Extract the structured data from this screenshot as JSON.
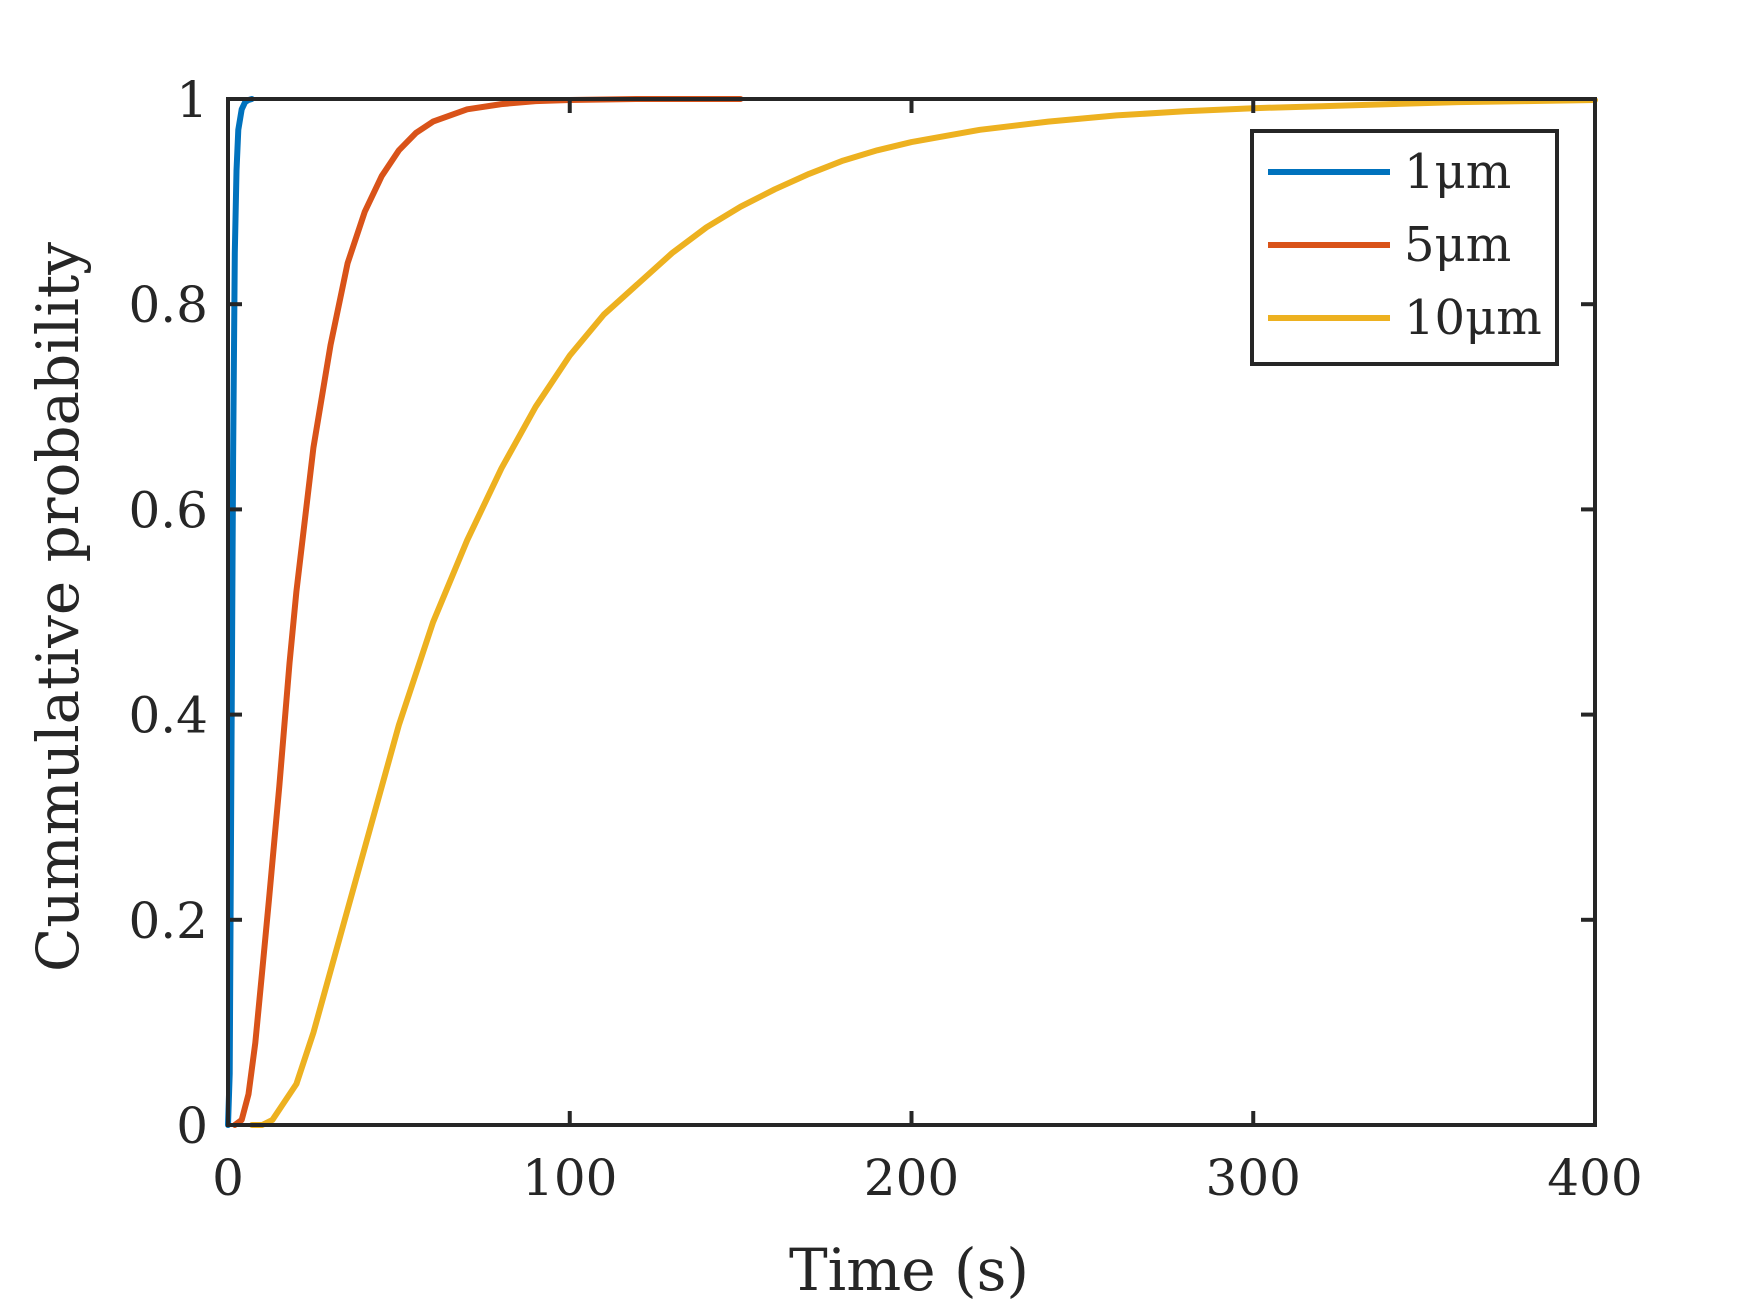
{
  "chart_data": {
    "type": "line",
    "title": "",
    "xlabel": "Time (s)",
    "ylabel": "Cummulative probability",
    "xlim": [
      0,
      400
    ],
    "ylim": [
      0,
      1
    ],
    "xticks": [
      "0",
      "100",
      "200",
      "300",
      "400"
    ],
    "yticks": [
      "0",
      "0.2",
      "0.4",
      "0.6",
      "0.8",
      "1"
    ],
    "xtick_values": [
      0,
      100,
      200,
      300,
      400
    ],
    "ytick_values": [
      0,
      0.2,
      0.4,
      0.6,
      0.8,
      1
    ],
    "grid": false,
    "legend_position": "top-right",
    "series": [
      {
        "name": "1μm",
        "color": "#0072BD",
        "x": [
          0,
          0.5,
          1,
          1.5,
          2,
          2.5,
          3,
          4,
          5,
          6,
          7
        ],
        "y": [
          0,
          0.05,
          0.35,
          0.65,
          0.85,
          0.93,
          0.97,
          0.99,
          0.997,
          0.999,
          1
        ]
      },
      {
        "name": "5μm",
        "color": "#D95319",
        "x": [
          2,
          4,
          6,
          8,
          10,
          12,
          15,
          18,
          20,
          25,
          30,
          35,
          40,
          45,
          50,
          55,
          60,
          70,
          80,
          90,
          100,
          120,
          150
        ],
        "y": [
          0,
          0.005,
          0.03,
          0.08,
          0.15,
          0.22,
          0.33,
          0.45,
          0.52,
          0.66,
          0.76,
          0.84,
          0.89,
          0.925,
          0.95,
          0.967,
          0.978,
          0.99,
          0.995,
          0.998,
          0.999,
          1,
          1
        ]
      },
      {
        "name": "10μm",
        "color": "#EDB120",
        "x": [
          7,
          10,
          13,
          16,
          20,
          25,
          30,
          35,
          40,
          50,
          60,
          70,
          80,
          90,
          100,
          110,
          120,
          130,
          140,
          150,
          160,
          170,
          180,
          190,
          200,
          220,
          240,
          260,
          280,
          300,
          320,
          340,
          360,
          380,
          400
        ],
        "y": [
          0,
          0,
          0.005,
          0.02,
          0.04,
          0.09,
          0.15,
          0.21,
          0.27,
          0.39,
          0.49,
          0.57,
          0.64,
          0.7,
          0.75,
          0.79,
          0.82,
          0.85,
          0.875,
          0.895,
          0.912,
          0.927,
          0.94,
          0.95,
          0.958,
          0.97,
          0.978,
          0.984,
          0.988,
          0.991,
          0.993,
          0.995,
          0.997,
          0.998,
          0.999
        ]
      }
    ]
  }
}
